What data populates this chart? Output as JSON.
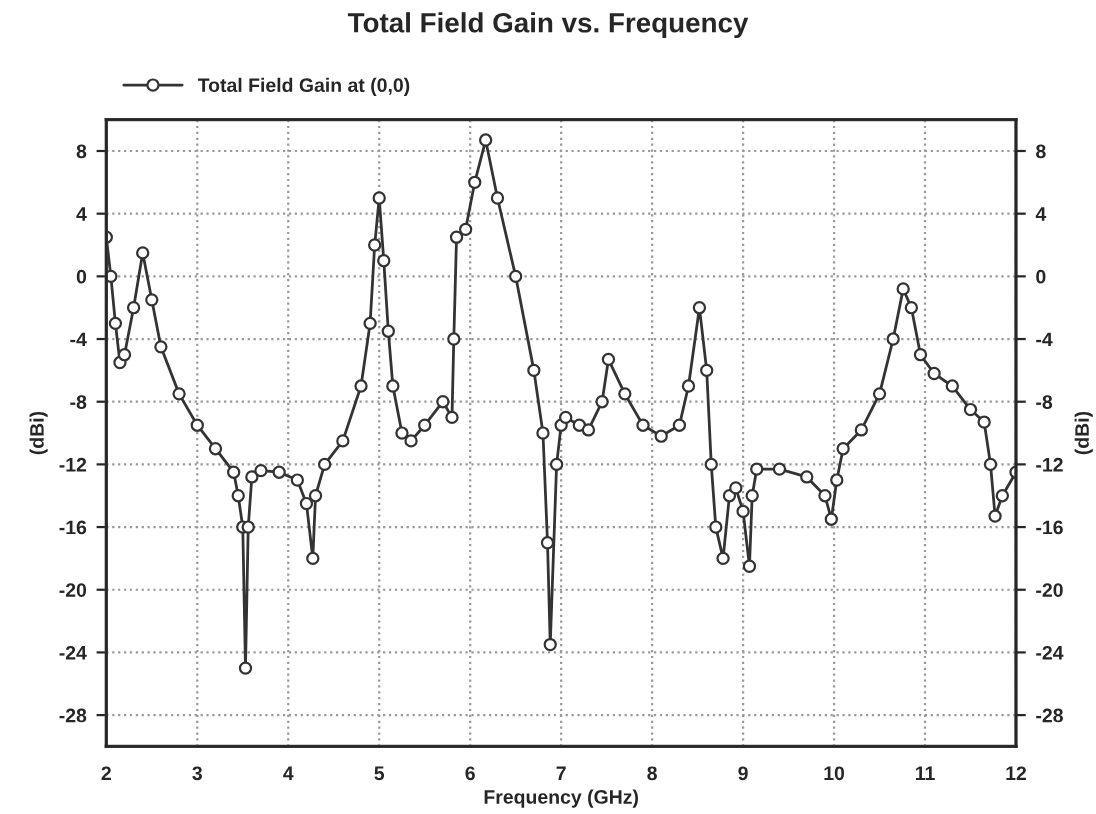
{
  "chart_data": {
    "type": "line",
    "title": "Total Field Gain vs. Frequency",
    "xlabel": "Frequency (GHz)",
    "ylabel": "(dBi)",
    "y2label": "(dBi)",
    "xlim": [
      2,
      12
    ],
    "xticks": [
      2,
      3,
      4,
      5,
      6,
      7,
      8,
      9,
      10,
      11,
      12
    ],
    "ylim": [
      -30,
      10
    ],
    "yticks": [
      -28,
      -24,
      -20,
      -16,
      -12,
      -8,
      -4,
      0,
      4,
      8
    ],
    "y2lim": [
      -30,
      10
    ],
    "y2ticks": [
      -28,
      -24,
      -20,
      -16,
      -12,
      -8,
      -4,
      0,
      4,
      8
    ],
    "grid": true,
    "legend": "top left",
    "marker": "circle",
    "line_style": "solid",
    "series": [
      {
        "name": "Total Field Gain at (0,0)",
        "color": "#333333",
        "x": [
          2.0,
          2.05,
          2.1,
          2.15,
          2.2,
          2.3,
          2.4,
          2.5,
          2.6,
          2.8,
          3.0,
          3.2,
          3.4,
          3.45,
          3.5,
          3.53,
          3.56,
          3.6,
          3.7,
          3.9,
          4.1,
          4.2,
          4.27,
          4.3,
          4.4,
          4.6,
          4.8,
          4.9,
          4.95,
          5.0,
          5.05,
          5.1,
          5.15,
          5.25,
          5.35,
          5.5,
          5.7,
          5.8,
          5.82,
          5.85,
          5.95,
          6.05,
          6.17,
          6.3,
          6.5,
          6.7,
          6.8,
          6.85,
          6.88,
          6.95,
          7.0,
          7.05,
          7.2,
          7.3,
          7.45,
          7.52,
          7.7,
          7.9,
          8.1,
          8.3,
          8.4,
          8.52,
          8.6,
          8.65,
          8.7,
          8.78,
          8.85,
          8.92,
          9.0,
          9.07,
          9.1,
          9.15,
          9.4,
          9.7,
          9.9,
          9.97,
          10.03,
          10.1,
          10.3,
          10.5,
          10.65,
          10.76,
          10.85,
          10.95,
          11.1,
          11.3,
          11.5,
          11.65,
          11.72,
          11.77,
          11.85,
          12.0
        ],
        "values": [
          2.5,
          0,
          -3,
          -5.5,
          -5,
          -2,
          1.5,
          -1.5,
          -4.5,
          -7.5,
          -9.5,
          -11,
          -12.5,
          -14,
          -16,
          -25,
          -16,
          -12.8,
          -12.4,
          -12.5,
          -13,
          -14.5,
          -18,
          -14,
          -12,
          -10.5,
          -7,
          -3,
          2,
          5,
          1,
          -3.5,
          -7,
          -10,
          -10.5,
          -9.5,
          -8,
          -9,
          -4,
          2.5,
          3,
          6,
          8.7,
          5,
          0,
          -6,
          -10,
          -17,
          -23.5,
          -12,
          -9.5,
          -9,
          -9.5,
          -9.8,
          -8,
          -5.3,
          -7.5,
          -9.5,
          -10.2,
          -9.5,
          -7,
          -2,
          -6,
          -12,
          -16,
          -18,
          -14,
          -13.5,
          -15,
          -18.5,
          -14,
          -12.3,
          -12.3,
          -12.8,
          -14,
          -15.5,
          -13,
          -11,
          -9.8,
          -7.5,
          -4,
          -0.8,
          -2,
          -5,
          -6.2,
          -7,
          -8.5,
          -9.3,
          -12,
          -15.3,
          -14,
          -12.5
        ]
      }
    ]
  }
}
